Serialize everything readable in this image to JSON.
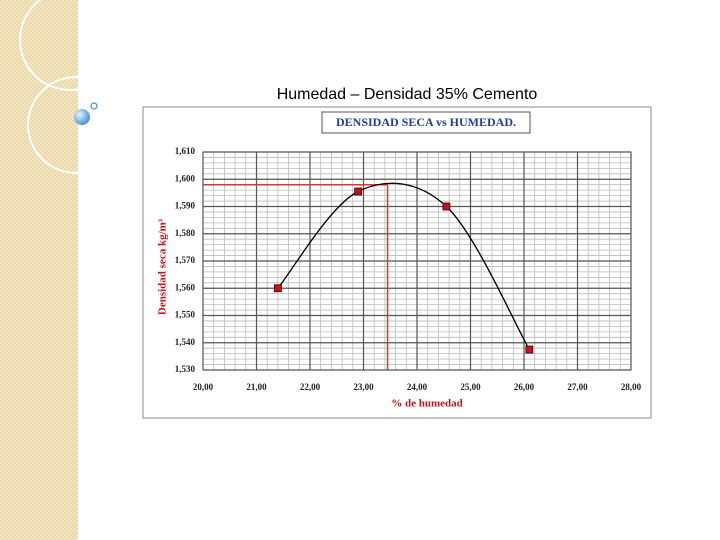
{
  "slide_title": "Humedad – Densidad 35% Cemento",
  "chart_data": {
    "type": "line",
    "title": "DENSIDAD SECA vs HUMEDAD.",
    "xlabel": "% de humedad",
    "ylabel": "Densidad seca kg/m³",
    "x": [
      21.4,
      22.9,
      24.55,
      26.1
    ],
    "values": [
      1.56,
      1.5955,
      1.59,
      1.5375
    ],
    "color": "#000000",
    "marker_color": "#c0141c",
    "smooth": true,
    "xlim": [
      20,
      28
    ],
    "xticks": [
      {
        "value": 20,
        "label": "20,00"
      },
      {
        "value": 21,
        "label": "21,00"
      },
      {
        "value": 22,
        "label": "22,00"
      },
      {
        "value": 23,
        "label": "23,00"
      },
      {
        "value": 24,
        "label": "24,00"
      },
      {
        "value": 25,
        "label": "25,00"
      },
      {
        "value": 26,
        "label": "26,00"
      },
      {
        "value": 27,
        "label": "27,00"
      },
      {
        "value": 28,
        "label": "28,00"
      }
    ],
    "ylim": [
      1.53,
      1.61
    ],
    "yticks": [
      {
        "value": 1.53,
        "label": "1,530"
      },
      {
        "value": 1.54,
        "label": "1,540"
      },
      {
        "value": 1.55,
        "label": "1,550"
      },
      {
        "value": 1.56,
        "label": "1,560"
      },
      {
        "value": 1.57,
        "label": "1,570"
      },
      {
        "value": 1.58,
        "label": "1,580"
      },
      {
        "value": 1.59,
        "label": "1,590"
      },
      {
        "value": 1.6,
        "label": "1,600"
      },
      {
        "value": 1.61,
        "label": "1,610"
      }
    ],
    "grid": true,
    "minor_divisions": 5,
    "reference": {
      "x": 23.45,
      "y": 1.598,
      "color": "#e8302c"
    }
  }
}
